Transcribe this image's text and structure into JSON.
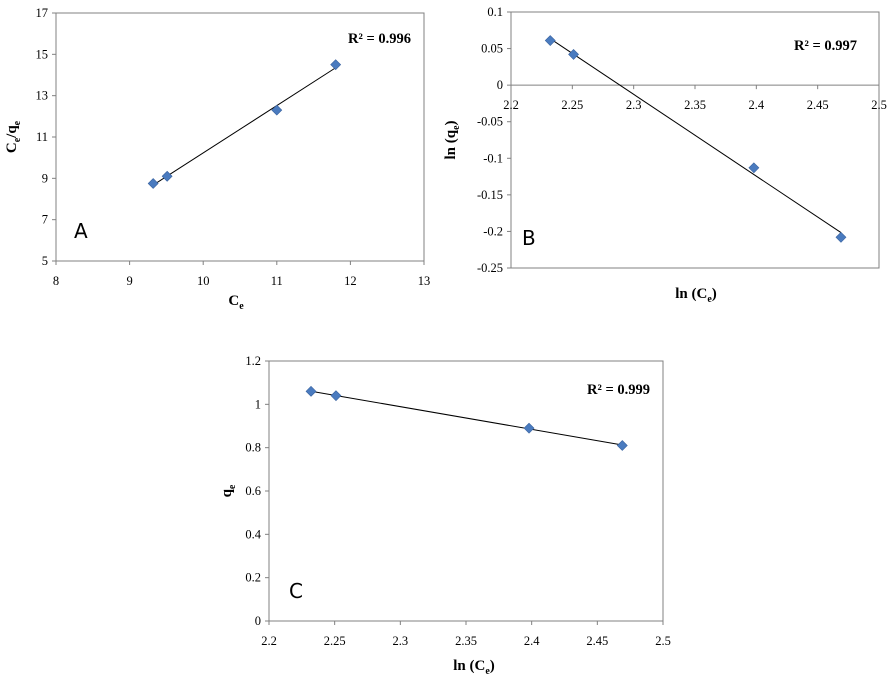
{
  "chart_data": [
    {
      "type": "scatter",
      "panel_label": "A",
      "annotation": "R² = 0.996",
      "xlabel": "Ce",
      "ylabel": "Ce/qe",
      "xlim": [
        8,
        13
      ],
      "ylim": [
        5,
        17
      ],
      "xticks": [
        8,
        9,
        10,
        11,
        12,
        13
      ],
      "yticks": [
        5,
        7,
        9,
        11,
        13,
        15,
        17
      ],
      "x_axis_position": "bottom",
      "grid": false,
      "marker_color": "#4a7bbf",
      "trendline": true,
      "points": [
        {
          "x": 9.32,
          "y": 8.75
        },
        {
          "x": 9.51,
          "y": 9.1
        },
        {
          "x": 11.0,
          "y": 12.3
        },
        {
          "x": 11.8,
          "y": 14.5
        }
      ]
    },
    {
      "type": "scatter",
      "panel_label": "B",
      "annotation": "R² = 0.997",
      "xlabel": "ln (Ce)",
      "ylabel": "ln (qe)",
      "xlim": [
        2.2,
        2.5
      ],
      "ylim": [
        -0.25,
        0.1
      ],
      "xticks": [
        2.2,
        2.25,
        2.3,
        2.35,
        2.4,
        2.45,
        2.5
      ],
      "yticks": [
        0.1,
        0.05,
        0,
        -0.05,
        -0.1,
        -0.15,
        -0.2,
        -0.25
      ],
      "x_axis_position": "at-zero",
      "grid": false,
      "marker_color": "#4a7bbf",
      "trendline": true,
      "points": [
        {
          "x": 2.232,
          "y": 0.061
        },
        {
          "x": 2.251,
          "y": 0.042
        },
        {
          "x": 2.398,
          "y": -0.113
        },
        {
          "x": 2.469,
          "y": -0.208
        }
      ]
    },
    {
      "type": "scatter",
      "panel_label": "C",
      "annotation": "R² = 0.999",
      "xlabel": "ln (Ce)",
      "ylabel": "qe",
      "xlim": [
        2.2,
        2.5
      ],
      "ylim": [
        0,
        1.2
      ],
      "xticks": [
        2.2,
        2.25,
        2.3,
        2.35,
        2.4,
        2.45,
        2.5
      ],
      "yticks": [
        0,
        0.2,
        0.4,
        0.6,
        0.8,
        1,
        1.2
      ],
      "x_axis_position": "bottom",
      "grid": false,
      "marker_color": "#4a7bbf",
      "trendline": true,
      "points": [
        {
          "x": 2.232,
          "y": 1.06
        },
        {
          "x": 2.251,
          "y": 1.04
        },
        {
          "x": 2.398,
          "y": 0.89
        },
        {
          "x": 2.469,
          "y": 0.81
        }
      ]
    }
  ]
}
